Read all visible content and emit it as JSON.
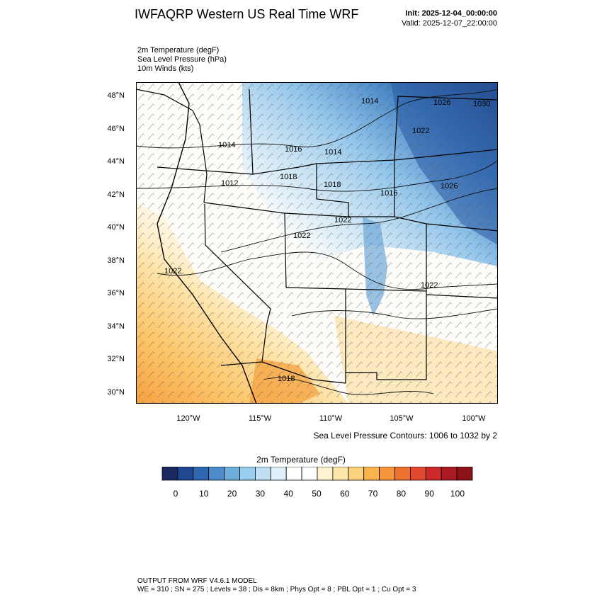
{
  "title": "IWFAQRP Western US Real Time WRF",
  "init": "Init: 2025-12-04_00:00:00",
  "valid": "Valid: 2025-12-07_22:00:00",
  "fields": {
    "temp": "2m Temperature   (degF)",
    "slp": "Sea Level Pressure   (hPa)",
    "wind": "10m Winds   (kts)"
  },
  "contour_note": "Sea Level Pressure Contours: 1006 to 1032 by 2",
  "colorbar": {
    "title": "2m Temperature  (degF)",
    "ticks": [
      "0",
      "10",
      "20",
      "30",
      "40",
      "50",
      "60",
      "70",
      "80",
      "90",
      "100"
    ],
    "colors": [
      "#1b2a5e",
      "#21478f",
      "#2e66b0",
      "#4b8cc9",
      "#6eaedb",
      "#99cdee",
      "#bfe0f4",
      "#e0f0fa",
      "#ffffff",
      "#ffffff",
      "#fff2d2",
      "#fee7a8",
      "#fdd27f",
      "#fbb34f",
      "#f5963c",
      "#ee7131",
      "#e24a30",
      "#cc2a2a",
      "#ab1a23",
      "#8c1219"
    ]
  },
  "lat_labels": [
    "48°N",
    "46°N",
    "44°N",
    "42°N",
    "40°N",
    "38°N",
    "36°N",
    "34°N",
    "32°N",
    "30°N"
  ],
  "lon_labels": [
    "120°W",
    "115°W",
    "110°W",
    "105°W",
    "100°W"
  ],
  "pressure_labels": [
    "1014",
    "1026",
    "1030",
    "1022",
    "1014",
    "1016",
    "1014",
    "1012",
    "1018",
    "1016",
    "1026",
    "1018",
    "1022",
    "1022",
    "1022",
    "1022",
    "1018"
  ],
  "footer": {
    "line1": "OUTPUT FROM WRF V4.6.1 MODEL",
    "line2": "WE = 310 ; SN = 275 ; Levels = 38 ; Dis = 8km ; Phys Opt = 8 ; PBL Opt = 1 ; Cu Opt = 3"
  }
}
